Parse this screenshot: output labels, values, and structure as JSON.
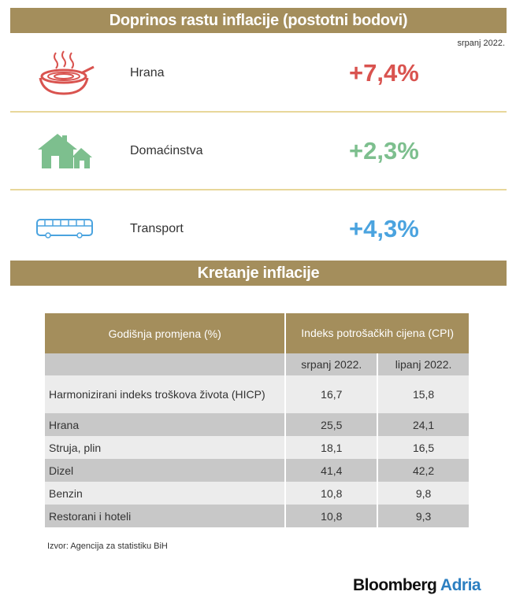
{
  "top": {
    "title": "Doprinos rastu inflacije (postotni bodovi)",
    "date": "srpanj 2022."
  },
  "categories": [
    {
      "label": "Hrana",
      "value": "+7,4%",
      "color": "#d9534f",
      "icon": "food-bowl-icon"
    },
    {
      "label": "Domaćinstva",
      "value": "+2,3%",
      "color": "#7dbf8e",
      "icon": "house-icon"
    },
    {
      "label": "Transport",
      "value": "+4,3%",
      "color": "#4aa3df",
      "icon": "bus-icon"
    }
  ],
  "colors": {
    "accent": "#a48e5c",
    "separator": "#e8d79a"
  },
  "section2": {
    "title": "Kretanje inflacije"
  },
  "table": {
    "header_label": "Godišnja promjena (%)",
    "header_cpi": "Indeks potrošačkih cijena (CPI)",
    "col1": "srpanj 2022.",
    "col2": "lipanj 2022.",
    "rows": [
      {
        "name": "Harmonizirani indeks troškova života (HICP)",
        "v1": "16,7",
        "v2": "15,8"
      },
      {
        "name": "Hrana",
        "v1": "25,5",
        "v2": "24,1"
      },
      {
        "name": "Struja, plin",
        "v1": "18,1",
        "v2": "16,5"
      },
      {
        "name": "Dizel",
        "v1": "41,4",
        "v2": "42,2"
      },
      {
        "name": "Benzin",
        "v1": "10,8",
        "v2": "9,8"
      },
      {
        "name": "Restorani i hoteli",
        "v1": "10,8",
        "v2": "9,3"
      }
    ]
  },
  "footer": {
    "source": "Izvor: Agencija za statistiku BiH",
    "brand_part1": "Bloomberg",
    "brand_part2": "Adria"
  }
}
